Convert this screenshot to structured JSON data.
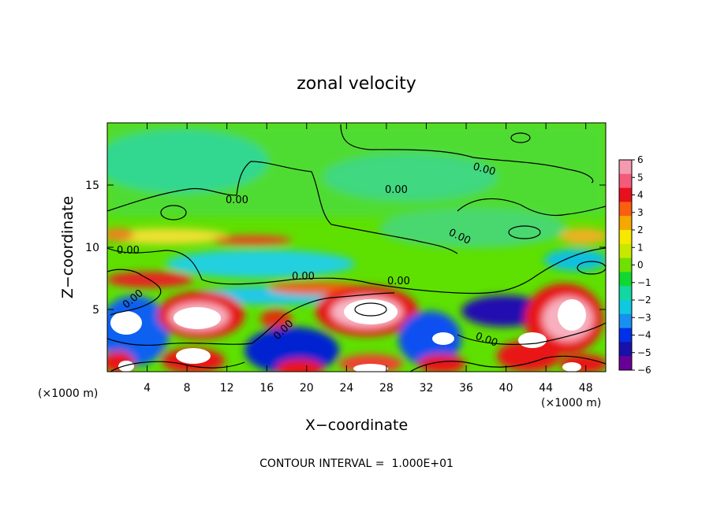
{
  "chart_data": {
    "type": "heatmap",
    "title": "zonal velocity",
    "xlabel": "X−coordinate",
    "ylabel": "Z−coordinate",
    "x_unit": "(×1000 m)",
    "x_unit_right": "(×1000 m)",
    "xlim": [
      0,
      50
    ],
    "ylim": [
      0,
      20
    ],
    "x_ticks": [
      4,
      8,
      12,
      16,
      20,
      24,
      28,
      32,
      36,
      40,
      44,
      48
    ],
    "y_ticks": [
      5,
      10,
      15
    ],
    "colorbar": {
      "ticks": [
        6,
        5,
        4,
        3,
        2,
        1,
        0,
        -1,
        -2,
        -3,
        -4,
        -5,
        -6
      ],
      "colors": [
        "#f49ab0",
        "#f45a7a",
        "#e8101c",
        "#f86010",
        "#f4a800",
        "#f8e800",
        "#c8e800",
        "#70e000",
        "#10d830",
        "#10d8a0",
        "#10c8e0",
        "#1890f0",
        "#0030e8",
        "#1810a8",
        "#680098"
      ]
    },
    "contour_level_labels": [
      "0.00",
      "0.00",
      "0.00",
      "0.00",
      "0.00",
      "0.00",
      "0.00",
      "0.00",
      "0.00"
    ],
    "annotation": "CONTOUR INTERVAL =  1.000E+01",
    "grid": false
  }
}
